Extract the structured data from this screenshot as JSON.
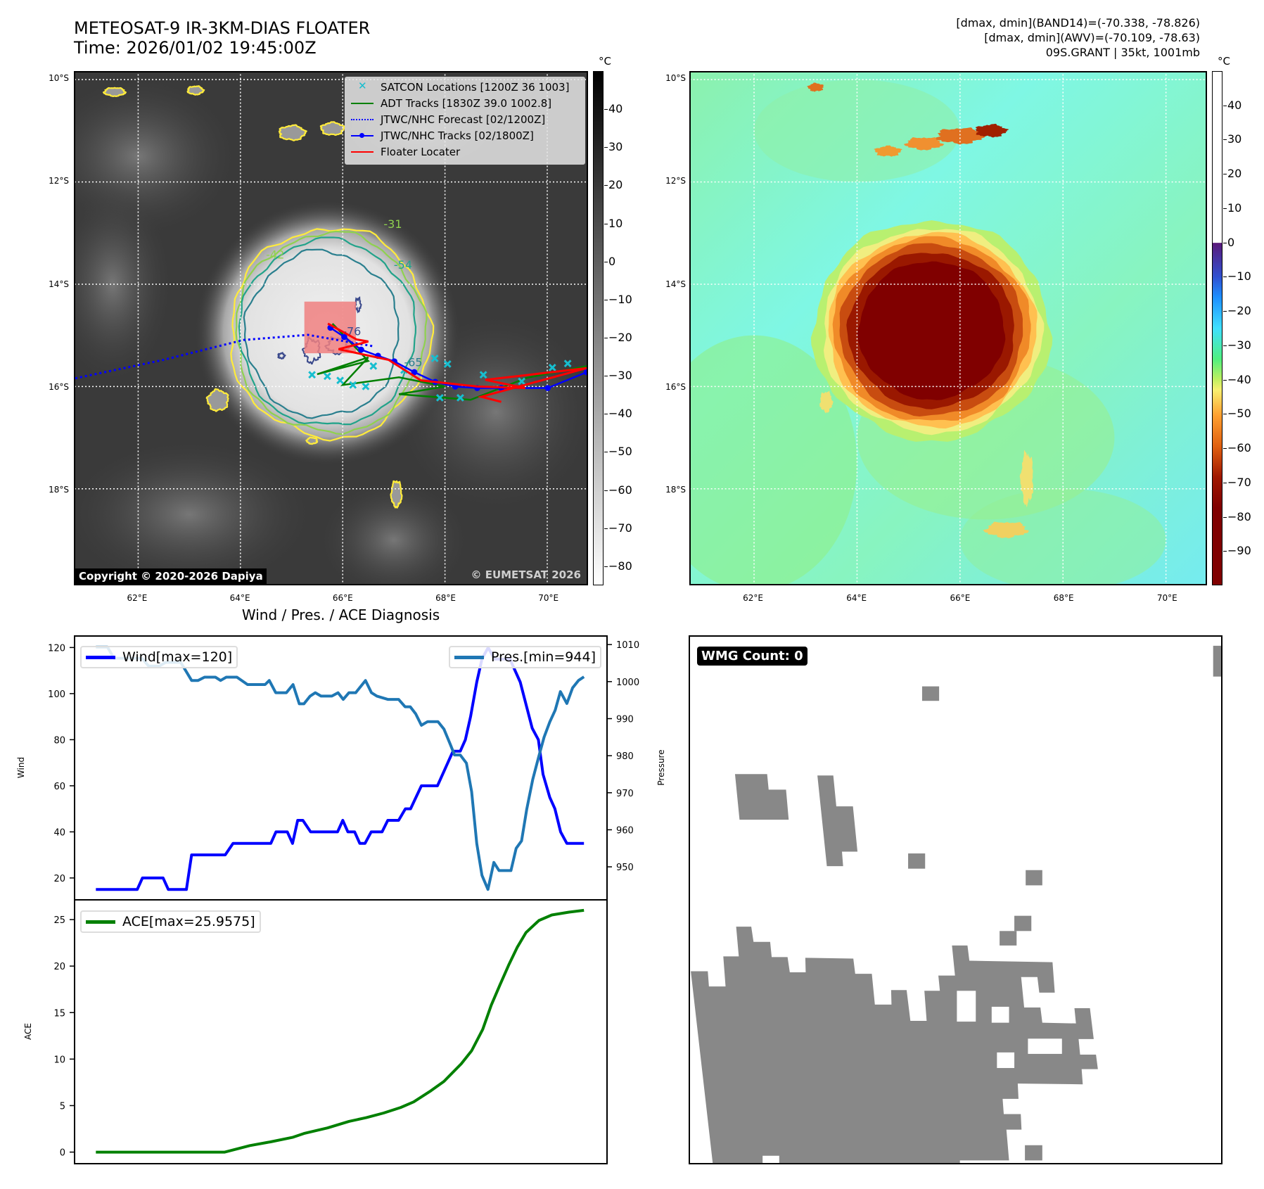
{
  "left_panel": {
    "title": "METEOSAT-9 IR-3KM-DIAS FLOATER",
    "time": "Time: 2026/01/02 19:45:00Z",
    "colorbar_unit": "°C",
    "colorbar_range": [
      -85,
      50
    ],
    "colorbar_ticks": [
      40,
      30,
      20,
      10,
      0,
      -10,
      -20,
      -30,
      -40,
      -50,
      -60,
      -70,
      -80
    ],
    "watermark": "© EUMETSAT 2026",
    "copyright": "Copyright © 2020-2026 Dapiya",
    "lat_labels": [
      "10°S",
      "12°S",
      "14°S",
      "16°S",
      "18°S"
    ],
    "lon_labels": [
      "62°E",
      "64°E",
      "66°E",
      "68°E",
      "70°E"
    ],
    "contour_labels": [
      "-42",
      "-31",
      "-54",
      "-65",
      "-76"
    ],
    "legend": [
      {
        "label": "SATCON Locations [1200Z 36 1003]",
        "color": "#17becf",
        "icon": "x-marker-icon"
      },
      {
        "label": "ADT Tracks [1830Z 39.0 1002.8]",
        "color": "#008000",
        "icon": "line-icon"
      },
      {
        "label": "JTWC/NHC Forecast [02/1200Z]",
        "color": "#0000ff",
        "icon": "dotted-line-icon"
      },
      {
        "label": "JTWC/NHC Tracks [02/1800Z]",
        "color": "#0000ff",
        "icon": "line-dot-icon"
      },
      {
        "label": "Floater Locater",
        "color": "#ff0000",
        "icon": "line-icon"
      }
    ],
    "tracks": {
      "jtwc_forecast": {
        "lon": [
          60.77,
          62.49,
          64.06,
          65.32,
          66.58
        ],
        "lat": [
          15.84,
          15.48,
          15.09,
          14.99,
          15.21
        ]
      },
      "jtwc_tracks": {
        "lon": [
          65.76,
          66.03,
          66.36,
          66.69,
          67.01,
          67.4,
          67.81,
          68.2,
          68.63,
          69.1,
          70.01,
          70.77
        ],
        "lat": [
          14.85,
          15.03,
          15.28,
          15.4,
          15.51,
          15.72,
          15.91,
          16.0,
          16.03,
          16.03,
          16.03,
          15.72
        ]
      },
      "floater": {
        "lon": [
          65.71,
          66.27,
          66.5,
          65.92,
          66.9,
          67.53,
          68.63,
          69.57,
          68.79,
          70.77,
          68.71,
          69.1
        ],
        "lat": [
          14.77,
          15.08,
          15.12,
          15.27,
          15.48,
          15.88,
          16.0,
          16.03,
          15.87,
          15.64,
          16.2,
          16.3
        ]
      },
      "adt": {
        "lon": [
          65.8,
          66.5,
          65.5,
          66.5,
          66.0,
          67.1,
          68.0,
          67.1,
          68.5,
          69.6,
          70.77
        ],
        "lat": [
          14.77,
          15.5,
          15.76,
          15.43,
          15.97,
          15.82,
          16.0,
          16.15,
          16.26,
          15.83,
          15.6
        ]
      },
      "satcon": {
        "lon": [
          65.4,
          65.7,
          65.95,
          66.2,
          66.45,
          66.6,
          67.2,
          67.8,
          68.05,
          68.3,
          67.9,
          68.75,
          69.5,
          70.1,
          70.4
        ],
        "lat": [
          15.77,
          15.8,
          15.88,
          15.97,
          16.0,
          15.6,
          15.68,
          15.45,
          15.56,
          16.22,
          16.22,
          15.77,
          15.9,
          15.63,
          15.55
        ]
      }
    }
  },
  "right_panel": {
    "stats": [
      "[dmax, dmin](BAND14)=(-70.338, -78.826)",
      "[dmax, dmin](AWV)=(-70.109, -78.63)",
      "09S.GRANT | 35kt, 1001mb"
    ],
    "colorbar_unit": "°C",
    "colorbar_range": [
      -100,
      50
    ],
    "colorbar_ticks": [
      40,
      30,
      20,
      10,
      0,
      -10,
      -20,
      -30,
      -40,
      -50,
      -60,
      -70,
      -80,
      -90
    ],
    "lat_labels": [
      "10°S",
      "12°S",
      "14°S",
      "16°S",
      "18°S"
    ],
    "lon_labels": [
      "62°E",
      "64°E",
      "66°E",
      "68°E",
      "70°E"
    ]
  },
  "diagnosis": {
    "title": "Wind / Pres. / ACE Diagnosis",
    "wind_ylabel": "Wind",
    "pres_ylabel": "Pressure",
    "ace_ylabel": "ACE",
    "wind_legend": "Wind[max=120]",
    "pres_legend": "Pres.[min=944]",
    "ace_legend": "ACE[max=25.9575]"
  },
  "wmg": {
    "label": "WMG Count: 0"
  },
  "chart_data": [
    {
      "type": "line",
      "title": "Wind / Pres. / ACE Diagnosis",
      "xlim": [
        -4.25,
        98.9
      ],
      "series": [
        {
          "name": "Wind[max=120]",
          "axis": "left",
          "color": "#0000ff",
          "ylim": [
            10.2,
            125.3
          ],
          "yticks": [
            20,
            40,
            60,
            80,
            100,
            120
          ],
          "x": [
            0,
            8,
            9,
            13,
            14,
            17.5,
            18.5,
            25,
            26.5,
            33.8,
            34.8,
            37,
            38,
            39,
            40,
            41.5,
            46.7,
            47.7,
            48.7,
            50,
            51,
            52,
            53.2,
            55.3,
            56.4,
            58.5,
            59.8,
            60.8,
            62.9,
            66,
            69,
            70.4,
            71.4,
            72.4,
            73.6,
            74.6,
            75.8,
            77,
            80,
            82,
            84.3,
            85.5,
            86.4,
            87.7,
            88.7,
            89.8,
            91,
            94.3
          ],
          "y": [
            15,
            15,
            20,
            20,
            15,
            15,
            30,
            30,
            35,
            35,
            40,
            40,
            35,
            45,
            45,
            40,
            40,
            45,
            40,
            40,
            35,
            35,
            40,
            40,
            45,
            45,
            50,
            50,
            60,
            60,
            75,
            75,
            80,
            90,
            105,
            115,
            120,
            115,
            115,
            105,
            85,
            80,
            65,
            55,
            50,
            40,
            35,
            35
          ]
        },
        {
          "name": "Pres.[min=944]",
          "axis": "right",
          "color": "#1f77b4",
          "ylim": [
            940.9,
            1012.5
          ],
          "yticks": [
            950,
            960,
            970,
            980,
            990,
            1000,
            1010
          ],
          "x": [
            0,
            2.25,
            3.5,
            8.9,
            10.2,
            12.25,
            13.5,
            16.4,
            18.5,
            19.75,
            21,
            23.1,
            24.1,
            25.2,
            27.25,
            29.3,
            32.7,
            33.5,
            34.75,
            36.8,
            38.1,
            39.3,
            40.2,
            41.4,
            42.4,
            43.5,
            45.6,
            46.8,
            47.8,
            48.9,
            50.2,
            52.1,
            53.25,
            54.3,
            56.4,
            58.5,
            59.75,
            60.75,
            61.8,
            62.9,
            64.1,
            66.1,
            67.25,
            68.5,
            69.3,
            70.4,
            71.6,
            72.6,
            73.6,
            74.6,
            75.75,
            76.9,
            77.9,
            80.2,
            81.2,
            82.25,
            83.25,
            84.4,
            85.6,
            86.6,
            87.7,
            88.75,
            89.75,
            91,
            92.1,
            93.25,
            94.3
          ],
          "y": [
            1009.3,
            1009.3,
            1006.3,
            1006.3,
            1004.2,
            1004.2,
            1005.2,
            1005.2,
            1000.3,
            1000.3,
            1001.2,
            1001.2,
            1000.3,
            1001.2,
            1001.2,
            999.2,
            999.2,
            1000.3,
            997,
            997,
            999.2,
            994,
            994,
            996.1,
            997,
            996.1,
            996.1,
            997,
            995.2,
            997,
            997,
            1000.3,
            997,
            996.1,
            995.2,
            995.2,
            993.2,
            993.2,
            991.3,
            988.2,
            989.2,
            989.2,
            987.2,
            983,
            980.2,
            980.2,
            978,
            970.3,
            956.3,
            947.7,
            943.9,
            951.2,
            949,
            949,
            955,
            957,
            965.5,
            973.5,
            979.9,
            985,
            989.1,
            992.3,
            997.3,
            994.1,
            998.3,
            1000.3,
            1001.3
          ]
        }
      ]
    },
    {
      "type": "line",
      "title": "",
      "xlim": [
        -4.25,
        98.9
      ],
      "series": [
        {
          "name": "ACE[max=25.9575]",
          "axis": "left",
          "color": "#008000",
          "ylim": [
            -1.32,
            27.2
          ],
          "yticks": [
            0,
            5,
            10,
            15,
            20,
            25
          ],
          "x": [
            0,
            24.9,
            29.75,
            33.75,
            38.1,
            40.2,
            44.75,
            48.9,
            52.25,
            55.6,
            58.9,
            61.4,
            64.75,
            67.25,
            70.6,
            72.6,
            74.75,
            76.4,
            78.1,
            79.75,
            81.4,
            83.1,
            85.6,
            88.1,
            91.4,
            94.3
          ],
          "y": [
            0,
            0,
            0.7,
            1.1,
            1.6,
            2.0,
            2.6,
            3.3,
            3.7,
            4.2,
            4.8,
            5.4,
            6.6,
            7.6,
            9.5,
            10.9,
            13.2,
            15.8,
            18,
            20.1,
            22,
            23.6,
            24.9,
            25.5,
            25.8,
            26
          ]
        }
      ]
    }
  ]
}
